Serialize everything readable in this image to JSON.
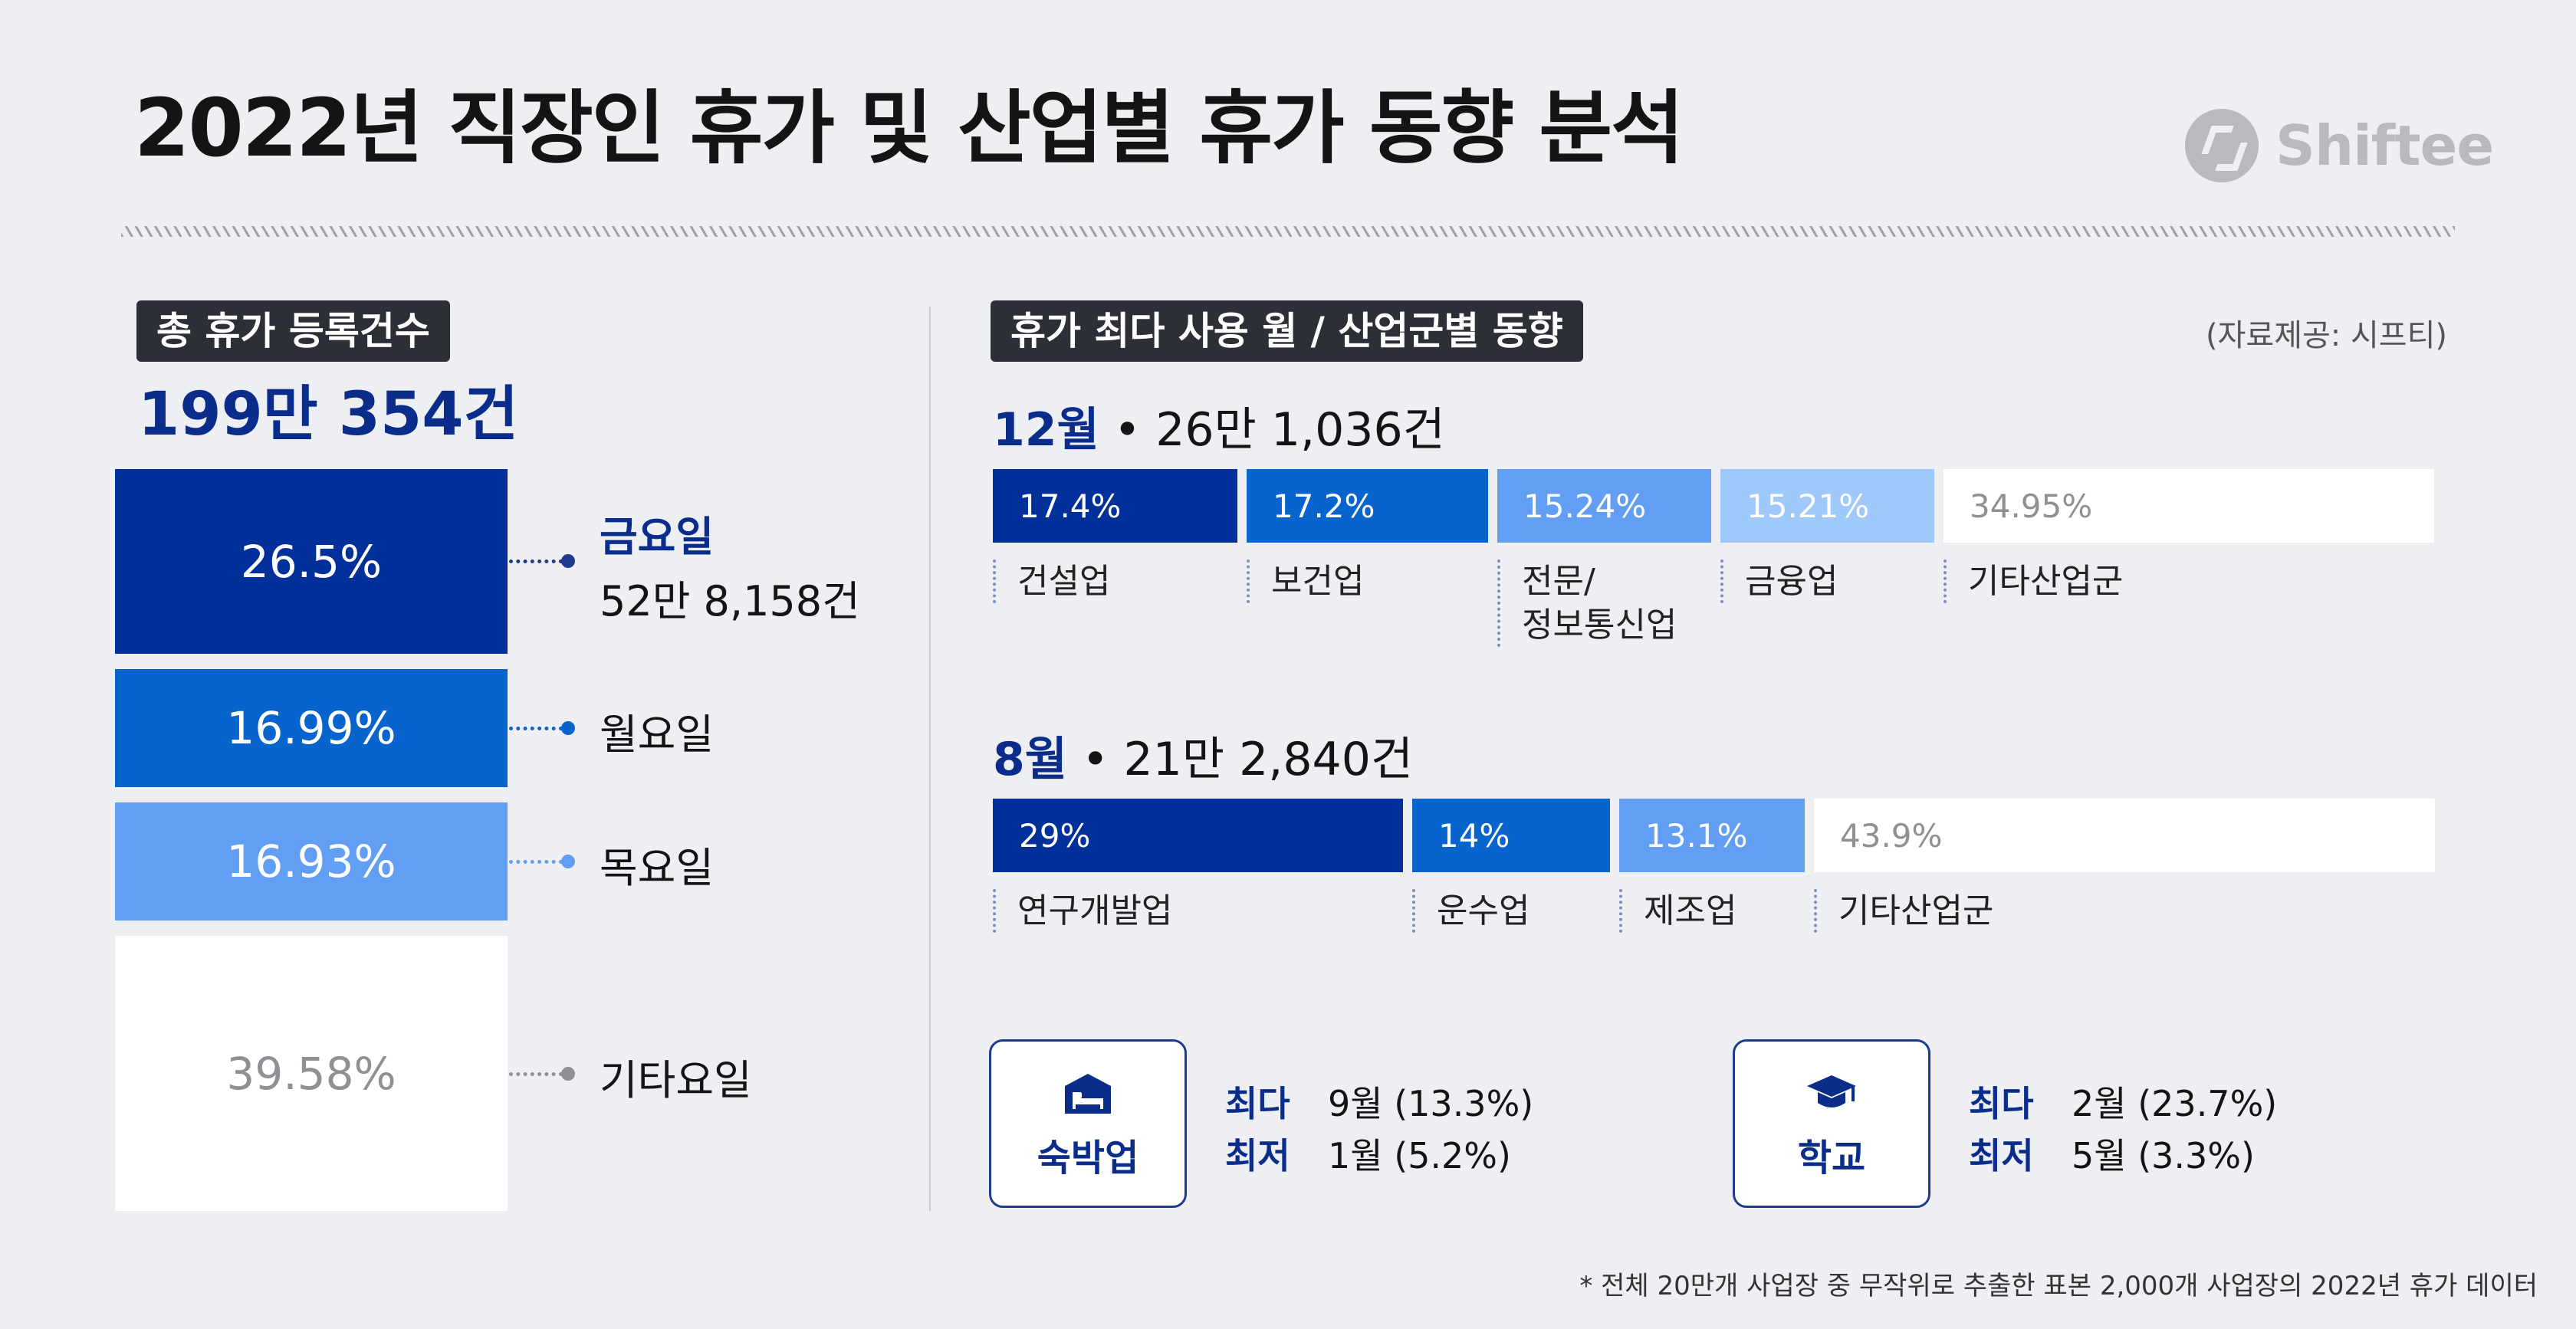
{
  "title": "2022년 직장인 휴가 및 산업별 휴가 동향 분석",
  "brand": {
    "name": "Shiftee",
    "icon": "shiftee-logo-icon"
  },
  "source_note": "(자료제공: 시프티)",
  "footnote": "* 전체 20만개 사업장 중 무작위로 추출한 표본 2,000개 사업장의 2022년 휴가 데이터",
  "colors": {
    "navy": "#02309a",
    "blue": "#0664cc",
    "light_blue": "#629ef3",
    "pale_blue": "#9fc8fb",
    "white": "#ffffff",
    "accent_text": "#0a2d8c"
  },
  "chart_data": [
    {
      "type": "bar",
      "title": "총 휴가 등록건수",
      "total": "199만 354건",
      "categories": [
        "금요일",
        "월요일",
        "목요일",
        "기타요일"
      ],
      "values": [
        26.5,
        16.99,
        16.93,
        39.58
      ],
      "value_labels": [
        "26.5%",
        "16.99%",
        "16.93%",
        "39.58%"
      ],
      "highlight": {
        "category": "금요일",
        "count": "52만 8,158건"
      }
    },
    {
      "type": "bar",
      "title": "휴가 최다 사용 월 / 산업군별 동향",
      "stacked": true,
      "groups": [
        {
          "month": "12월",
          "count": "• 26만 1,036건",
          "categories": [
            "건설업",
            "보건업",
            "전문/\n정보통신업",
            "금융업",
            "기타산업군"
          ],
          "values": [
            17.4,
            17.2,
            15.24,
            15.21,
            34.95
          ],
          "value_labels": [
            "17.4%",
            "17.2%",
            "15.24%",
            "15.21%",
            "34.95%"
          ]
        },
        {
          "month": "8월",
          "count": "• 21만 2,840건",
          "categories": [
            "연구개발업",
            "운수업",
            "제조업",
            "기타산업군"
          ],
          "values": [
            29,
            14,
            13.1,
            43.9
          ],
          "value_labels": [
            "29%",
            "14%",
            "13.1%",
            "43.9%"
          ]
        }
      ]
    }
  ],
  "cards": [
    {
      "label": "숙박업",
      "icon": "bed-icon",
      "max_key": "최다",
      "max_value": "9월 (13.3%)",
      "min_key": "최저",
      "min_value": "1월 (5.2%)"
    },
    {
      "label": "학교",
      "icon": "graduation-cap-icon",
      "max_key": "최다",
      "max_value": "2월 (23.7%)",
      "min_key": "최저",
      "min_value": "5월 (3.3%)"
    }
  ]
}
